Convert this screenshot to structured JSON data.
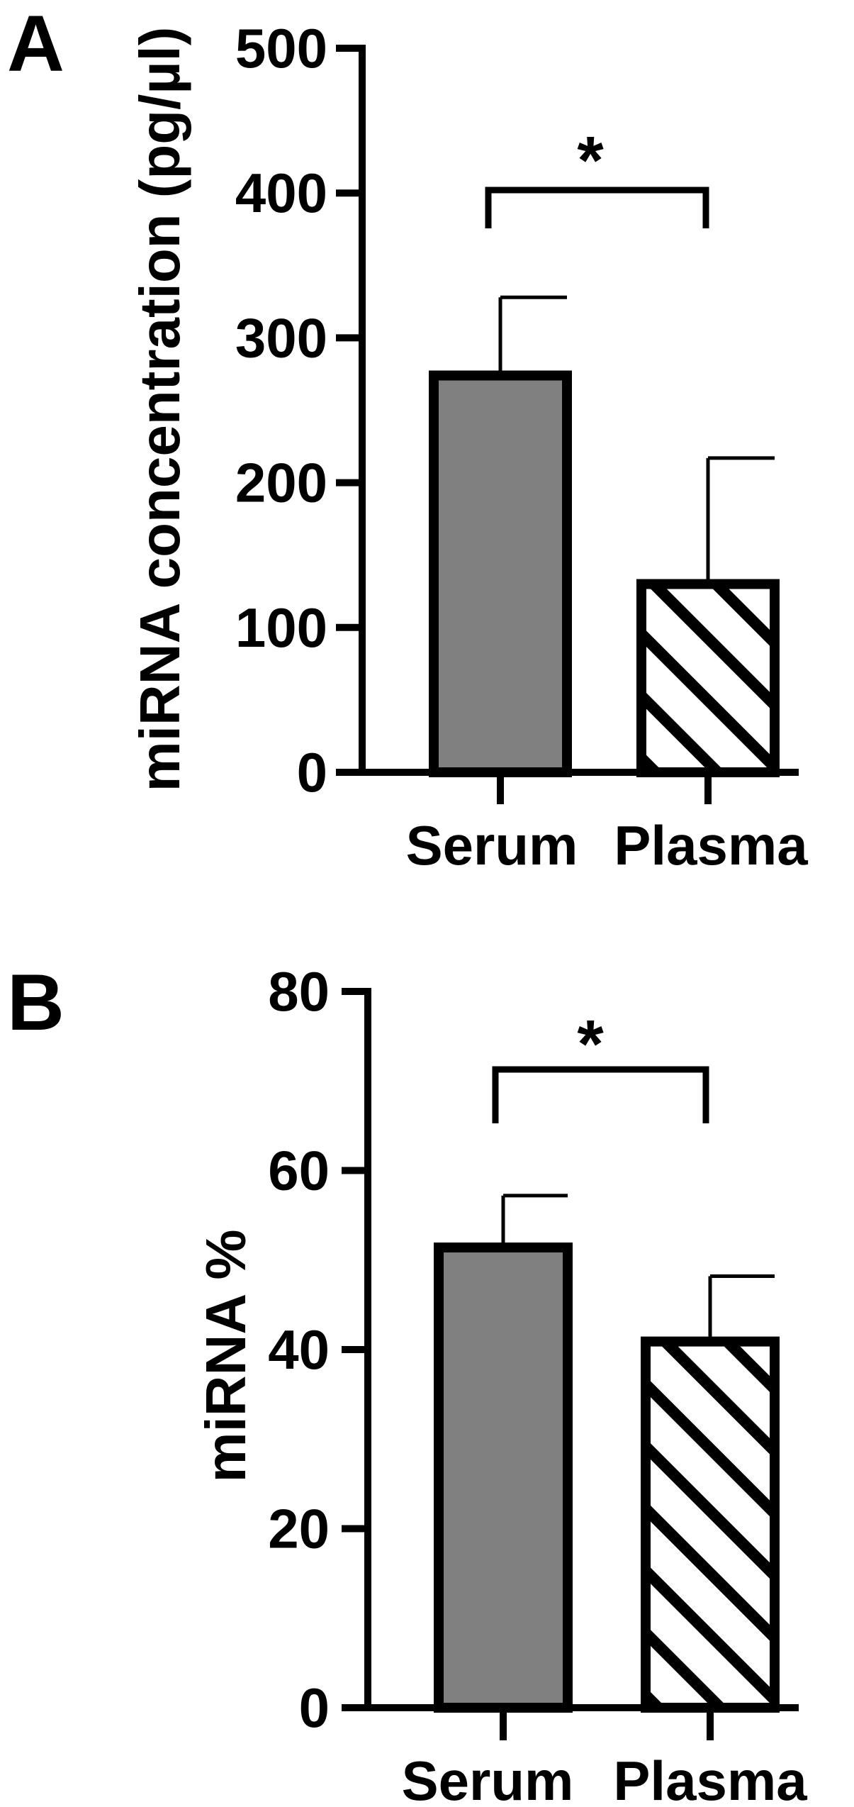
{
  "colors": {
    "background": "#ffffff",
    "ink": "#000000",
    "hatch_background": "#ffffff"
  },
  "chart_data": [
    {
      "panel_label": "A",
      "type": "bar",
      "categories": [
        "Serum",
        "Plasma"
      ],
      "values": [
        274,
        130
      ],
      "error_upper": [
        54,
        87
      ],
      "fills": [
        "#808080",
        "hatch"
      ],
      "ylabel": "miRNA concentration (pg/µl)",
      "ylim": [
        0,
        500
      ],
      "yticks": [
        0,
        100,
        200,
        300,
        400,
        500
      ],
      "significance": [
        {
          "between": [
            0,
            1
          ],
          "label": "*"
        }
      ],
      "grid": false
    },
    {
      "panel_label": "B",
      "type": "bar",
      "categories": [
        "Serum",
        "Plasma"
      ],
      "values": [
        51.4,
        40.9
      ],
      "error_upper": [
        5.8,
        7.3
      ],
      "fills": [
        "#808080",
        "hatch"
      ],
      "ylabel": "miRNA %",
      "ylim": [
        0,
        80
      ],
      "yticks": [
        0,
        20,
        40,
        60,
        80
      ],
      "significance": [
        {
          "between": [
            0,
            1
          ],
          "label": "*"
        }
      ],
      "grid": false
    }
  ]
}
